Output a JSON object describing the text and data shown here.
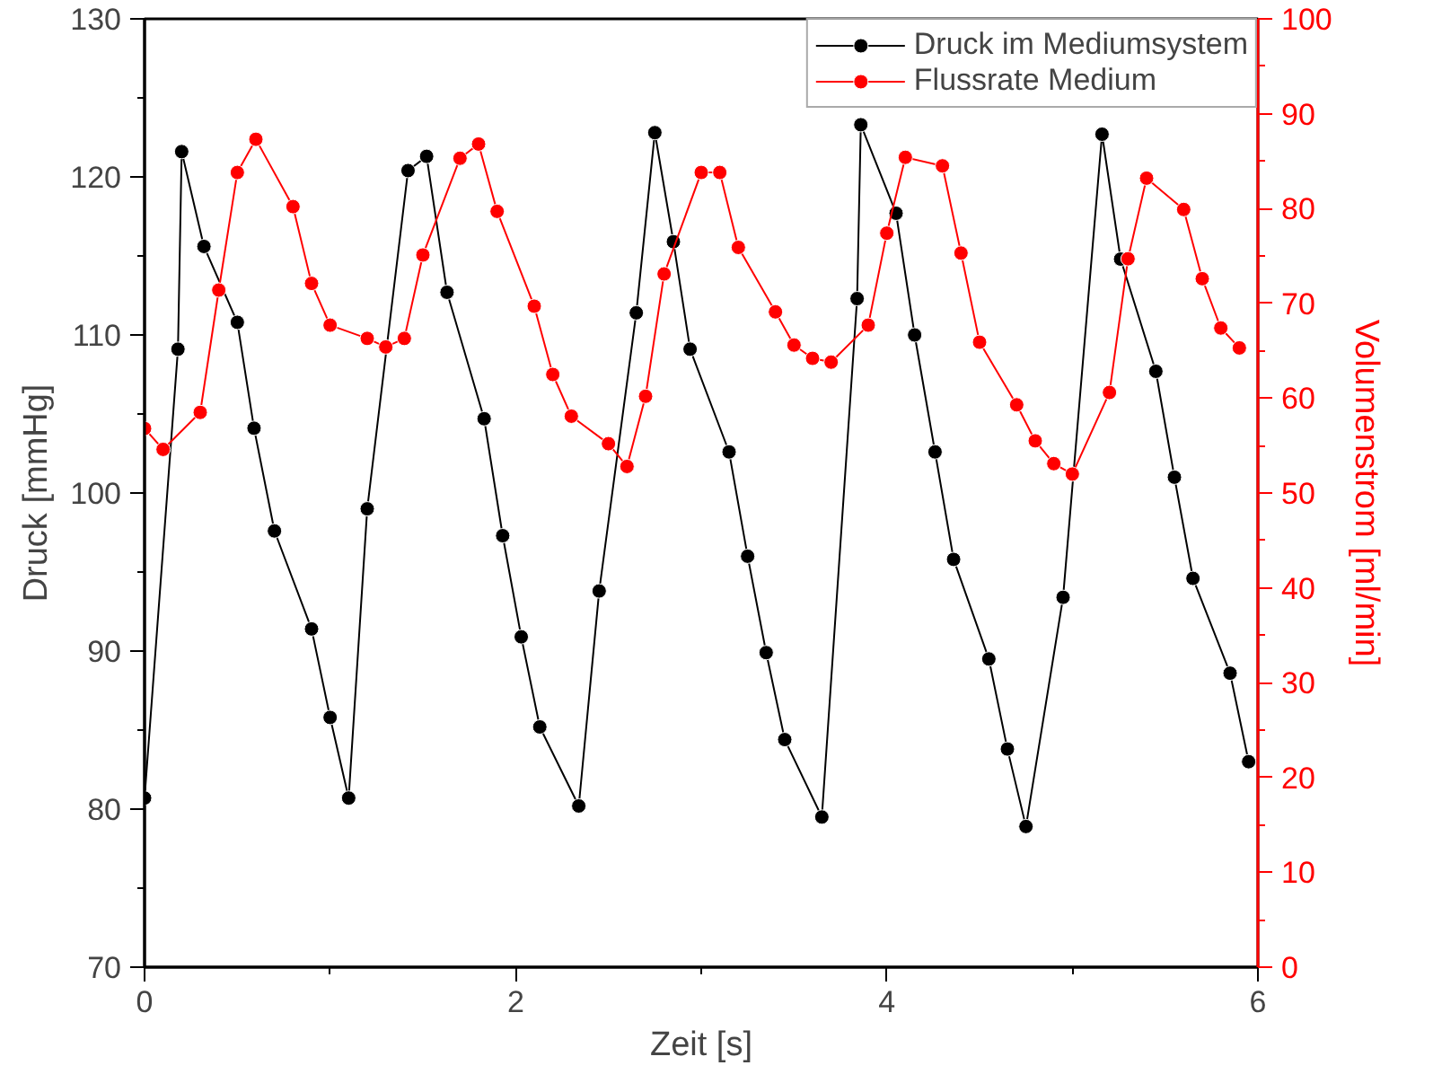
{
  "chart_data": {
    "type": "line",
    "xlabel": "Zeit [s]",
    "ylabel": "Druck [mmHg]",
    "y2label": "Volumenstrom [ml/min]",
    "xlim": [
      0,
      6
    ],
    "xticks": [
      0,
      2,
      4,
      6
    ],
    "ylim": [
      70,
      130
    ],
    "yticks": [
      70,
      80,
      90,
      100,
      110,
      120,
      130
    ],
    "y2lim": [
      0,
      100
    ],
    "y2ticks": [
      0,
      10,
      20,
      30,
      40,
      50,
      60,
      70,
      80,
      90,
      100
    ],
    "legend": "top right",
    "marker": "circle",
    "grid": false,
    "series": [
      {
        "name": "Druck im Mediumsystem",
        "color": "#000000",
        "x": [
          0,
          0.18,
          0.2,
          0.32,
          0.5,
          0.59,
          0.7,
          0.9,
          1.0,
          1.1,
          1.2,
          1.42,
          1.52,
          1.63,
          1.83,
          1.93,
          2.03,
          2.13,
          2.34,
          2.45,
          2.65,
          2.75,
          2.85,
          2.94,
          3.15,
          3.25,
          3.35,
          3.45,
          3.65,
          3.84,
          3.86,
          4.05,
          4.15,
          4.26,
          4.36,
          4.55,
          4.65,
          4.75,
          4.95,
          5.16,
          5.26,
          5.45,
          5.55,
          5.65,
          5.85,
          5.95
        ],
        "values": [
          80.7,
          109.1,
          121.6,
          115.6,
          110.8,
          104.1,
          97.6,
          91.4,
          85.8,
          80.7,
          99.0,
          120.4,
          121.3,
          112.7,
          104.7,
          97.3,
          90.9,
          85.2,
          80.2,
          93.8,
          111.4,
          122.8,
          115.9,
          109.1,
          102.6,
          96.0,
          89.9,
          84.4,
          79.5,
          112.3,
          123.3,
          117.7,
          110.0,
          102.6,
          95.8,
          89.5,
          83.8,
          78.9,
          93.4,
          122.7,
          114.8,
          107.7,
          101.0,
          94.6,
          88.6,
          83.0
        ]
      },
      {
        "name": "Flussrate Medium",
        "color": "#ff0000",
        "axis": "y2",
        "x": [
          0,
          0.1,
          0.3,
          0.4,
          0.5,
          0.6,
          0.8,
          0.9,
          1.0,
          1.2,
          1.3,
          1.4,
          1.5,
          1.7,
          1.8,
          1.9,
          2.1,
          2.2,
          2.3,
          2.5,
          2.6,
          2.7,
          2.8,
          3.0,
          3.1,
          3.2,
          3.4,
          3.5,
          3.6,
          3.7,
          3.9,
          4.0,
          4.1,
          4.3,
          4.4,
          4.5,
          4.7,
          4.8,
          4.9,
          5.0,
          5.2,
          5.3,
          5.4,
          5.6,
          5.7,
          5.8,
          5.9
        ],
        "values": [
          56.8,
          54.6,
          58.5,
          71.4,
          83.8,
          87.3,
          80.2,
          72.1,
          67.7,
          66.3,
          65.4,
          66.3,
          75.1,
          85.3,
          86.8,
          79.7,
          69.7,
          62.5,
          58.1,
          55.2,
          52.8,
          60.2,
          73.1,
          83.8,
          83.8,
          75.9,
          69.1,
          65.6,
          64.2,
          63.8,
          67.7,
          77.4,
          85.4,
          84.5,
          75.3,
          65.9,
          59.3,
          55.5,
          53.1,
          52.0,
          60.6,
          74.7,
          83.2,
          79.9,
          72.6,
          67.4,
          65.3
        ]
      }
    ]
  }
}
